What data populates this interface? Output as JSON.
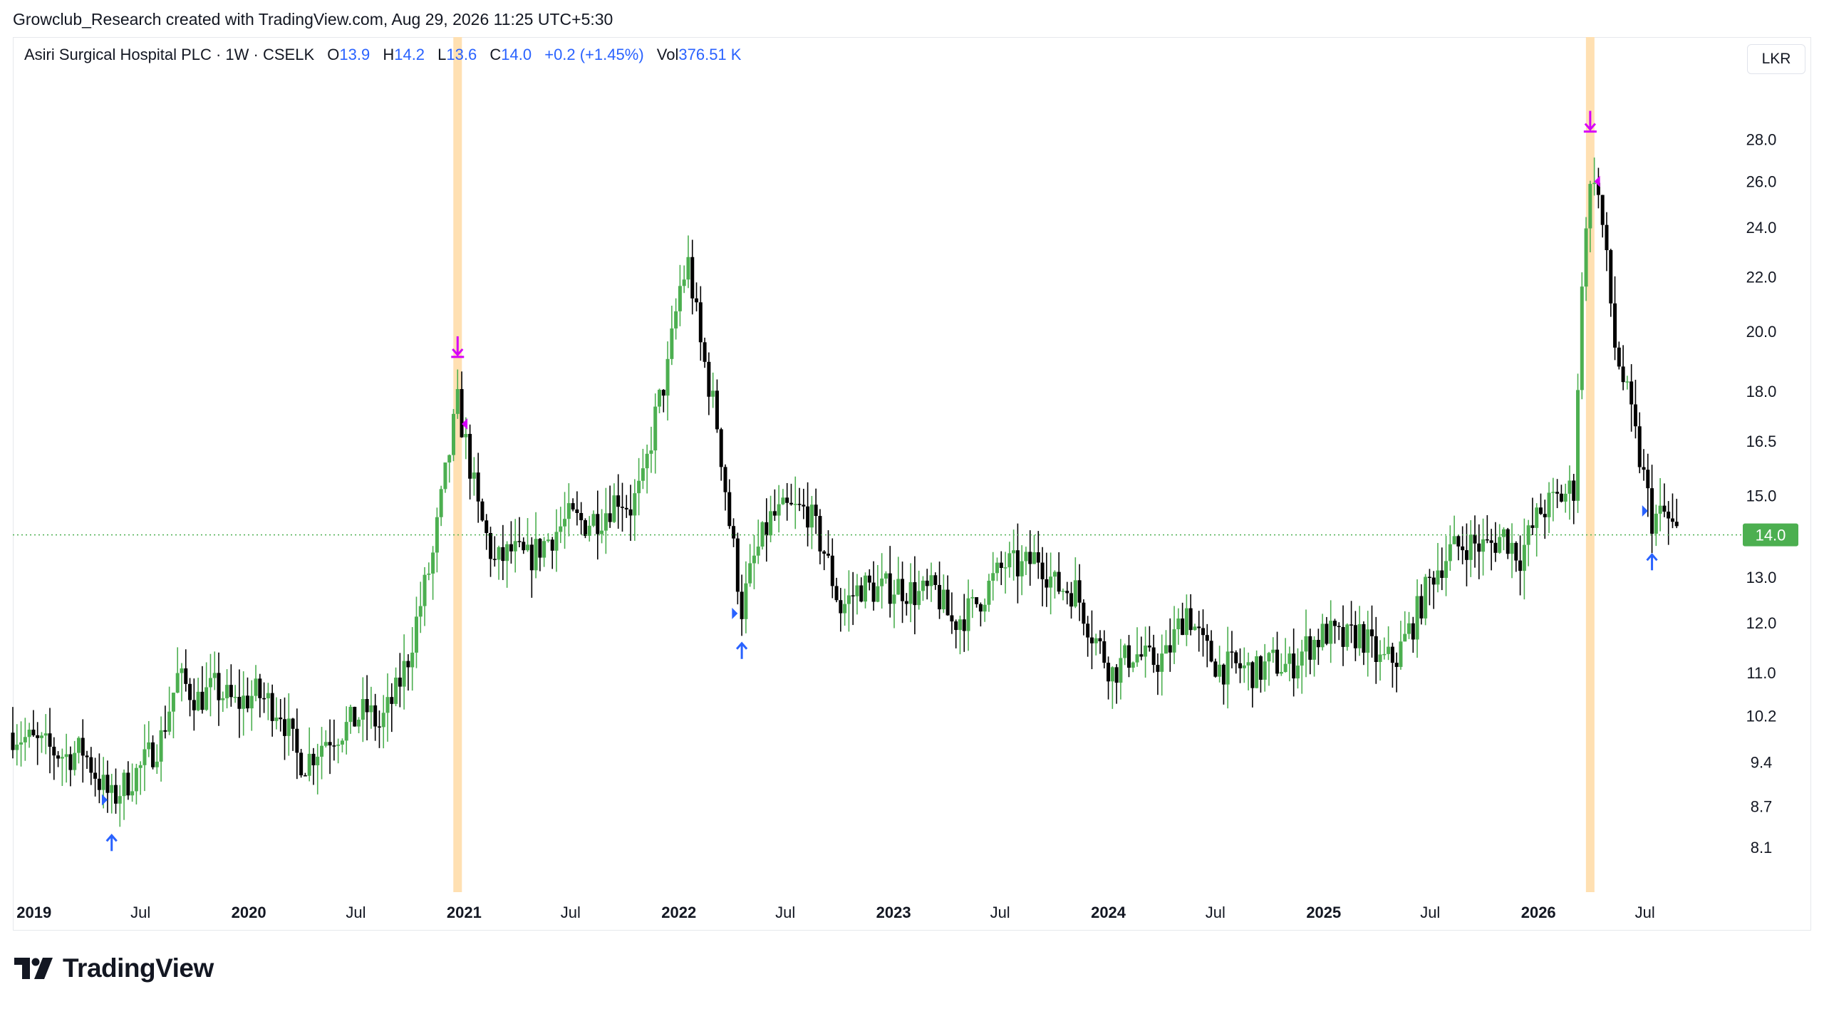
{
  "caption": "Growclub_Research created with TradingView.com, Aug 29, 2026 11:25 UTC+5:30",
  "legend": {
    "symbol": "Asiri Surgical Hospital PLC · 1W · CSELK",
    "o_label": "O",
    "o": "13.9",
    "h_label": "H",
    "h": "14.2",
    "l_label": "L",
    "l": "13.6",
    "c_label": "C",
    "c": "14.0",
    "change": "+0.2 (+1.45%)",
    "vol_label": "Vol",
    "vol": "376.51 K"
  },
  "currency": "LKR",
  "last_price_label": "14.0",
  "brand": "TradingView",
  "colors": {
    "up": "#4caf50",
    "down": "#000000",
    "signal_buy": "#2962ff",
    "signal_sell": "#d500f9",
    "highlight": "#ffe0b2",
    "price_line": "#4caf50"
  },
  "chart_data": {
    "type": "candlestick",
    "title": "Asiri Surgical Hospital PLC · 1W · CSELK",
    "y_scale": "log",
    "ylim": [
      7.6,
      30.0
    ],
    "y_ticks": [
      "28.0",
      "26.0",
      "24.0",
      "22.0",
      "20.0",
      "18.0",
      "16.5",
      "15.0",
      "14.0",
      "13.0",
      "12.0",
      "11.0",
      "10.2",
      "9.4",
      "8.7",
      "8.1"
    ],
    "x_ticks": [
      {
        "label": "2019",
        "date": "2019-01-01",
        "bold": true
      },
      {
        "label": "Jul",
        "date": "2019-07-01",
        "bold": false
      },
      {
        "label": "2020",
        "date": "2020-01-01",
        "bold": true
      },
      {
        "label": "Jul",
        "date": "2020-07-01",
        "bold": false
      },
      {
        "label": "2021",
        "date": "2021-01-01",
        "bold": true
      },
      {
        "label": "Jul",
        "date": "2021-07-01",
        "bold": false
      },
      {
        "label": "2022",
        "date": "2022-01-01",
        "bold": true
      },
      {
        "label": "Jul",
        "date": "2022-07-01",
        "bold": false
      },
      {
        "label": "2023",
        "date": "2023-01-01",
        "bold": true
      },
      {
        "label": "Jul",
        "date": "2023-07-01",
        "bold": false
      },
      {
        "label": "2024",
        "date": "2024-01-01",
        "bold": true
      },
      {
        "label": "Jul",
        "date": "2024-07-01",
        "bold": false
      },
      {
        "label": "2025",
        "date": "2025-01-01",
        "bold": true
      },
      {
        "label": "Jul",
        "date": "2025-07-01",
        "bold": false
      },
      {
        "label": "2026",
        "date": "2026-01-01",
        "bold": true
      },
      {
        "label": "Jul",
        "date": "2026-07-01",
        "bold": false
      }
    ],
    "date_range": [
      "2018-11-26",
      "2026-12-01"
    ],
    "series_anchors": [
      [
        "2018-11-26",
        9.9
      ],
      [
        "2019-01-07",
        9.7
      ],
      [
        "2019-02-25",
        9.5
      ],
      [
        "2019-03-25",
        9.6
      ],
      [
        "2019-04-22",
        9.1
      ],
      [
        "2019-05-13",
        8.8
      ],
      [
        "2019-06-10",
        9.1
      ],
      [
        "2019-07-01",
        9.3
      ],
      [
        "2019-08-05",
        9.8
      ],
      [
        "2019-09-02",
        10.9
      ],
      [
        "2019-10-07",
        10.5
      ],
      [
        "2019-11-04",
        10.7
      ],
      [
        "2019-12-09",
        10.4
      ],
      [
        "2020-01-13",
        10.6
      ],
      [
        "2020-02-24",
        10.3
      ],
      [
        "2020-03-23",
        9.5
      ],
      [
        "2020-04-06",
        9.4
      ],
      [
        "2020-05-11",
        9.8
      ],
      [
        "2020-06-15",
        10.0
      ],
      [
        "2020-07-20",
        10.3
      ],
      [
        "2020-08-10",
        10.0
      ],
      [
        "2020-09-07",
        10.6
      ],
      [
        "2020-09-28",
        11.3
      ],
      [
        "2020-10-19",
        12.4
      ],
      [
        "2020-11-09",
        13.5
      ],
      [
        "2020-11-30",
        15.5
      ],
      [
        "2020-12-21",
        17.6
      ],
      [
        "2021-01-04",
        16.4
      ],
      [
        "2021-01-25",
        14.6
      ],
      [
        "2021-02-22",
        13.3
      ],
      [
        "2021-03-22",
        13.6
      ],
      [
        "2021-04-19",
        13.4
      ],
      [
        "2021-05-24",
        13.9
      ],
      [
        "2021-06-28",
        14.4
      ],
      [
        "2021-07-26",
        14.3
      ],
      [
        "2021-08-23",
        14.5
      ],
      [
        "2021-09-20",
        15.0
      ],
      [
        "2021-10-11",
        14.7
      ],
      [
        "2021-11-01",
        15.3
      ],
      [
        "2021-11-22",
        17.2
      ],
      [
        "2021-12-13",
        18.7
      ],
      [
        "2022-01-03",
        21.6
      ],
      [
        "2022-01-17",
        22.5
      ],
      [
        "2022-02-07",
        19.5
      ],
      [
        "2022-03-07",
        17.0
      ],
      [
        "2022-03-28",
        14.3
      ],
      [
        "2022-04-18",
        12.3
      ],
      [
        "2022-05-09",
        13.4
      ],
      [
        "2022-06-06",
        14.4
      ],
      [
        "2022-07-04",
        14.6
      ],
      [
        "2022-08-08",
        14.6
      ],
      [
        "2022-09-05",
        13.6
      ],
      [
        "2022-10-03",
        12.3
      ],
      [
        "2022-11-07",
        12.8
      ],
      [
        "2022-12-05",
        12.7
      ],
      [
        "2023-01-09",
        12.8
      ],
      [
        "2023-02-13",
        12.6
      ],
      [
        "2023-03-13",
        12.7
      ],
      [
        "2023-04-10",
        12.0
      ],
      [
        "2023-05-15",
        12.3
      ],
      [
        "2023-06-12",
        12.8
      ],
      [
        "2023-07-10",
        13.3
      ],
      [
        "2023-08-07",
        13.2
      ],
      [
        "2023-09-04",
        13.5
      ],
      [
        "2023-10-02",
        12.8
      ],
      [
        "2023-11-06",
        12.7
      ],
      [
        "2023-12-04",
        11.8
      ],
      [
        "2024-01-08",
        11.0
      ],
      [
        "2024-02-12",
        11.4
      ],
      [
        "2024-03-11",
        11.2
      ],
      [
        "2024-04-08",
        11.3
      ],
      [
        "2024-05-13",
        12.3
      ],
      [
        "2024-06-10",
        11.5
      ],
      [
        "2024-07-08",
        11.1
      ],
      [
        "2024-08-12",
        11.1
      ],
      [
        "2024-09-09",
        11.0
      ],
      [
        "2024-10-07",
        11.2
      ],
      [
        "2024-11-04",
        11.1
      ],
      [
        "2024-12-02",
        11.5
      ],
      [
        "2025-01-06",
        11.8
      ],
      [
        "2025-02-03",
        11.6
      ],
      [
        "2025-03-03",
        11.8
      ],
      [
        "2025-04-07",
        11.2
      ],
      [
        "2025-05-05",
        11.3
      ],
      [
        "2025-06-02",
        12.0
      ],
      [
        "2025-07-07",
        13.1
      ],
      [
        "2025-08-04",
        13.6
      ],
      [
        "2025-09-01",
        13.8
      ],
      [
        "2025-10-06",
        13.7
      ],
      [
        "2025-11-03",
        14.0
      ],
      [
        "2025-12-01",
        13.5
      ],
      [
        "2026-01-05",
        14.6
      ],
      [
        "2026-02-02",
        14.9
      ],
      [
        "2026-03-02",
        15.2
      ],
      [
        "2026-03-23",
        24.5
      ],
      [
        "2026-04-06",
        26.5
      ],
      [
        "2026-04-20",
        24.0
      ],
      [
        "2026-05-11",
        19.5
      ],
      [
        "2026-06-01",
        17.8
      ],
      [
        "2026-06-22",
        16.0
      ],
      [
        "2026-07-13",
        14.4
      ],
      [
        "2026-08-03",
        14.5
      ],
      [
        "2026-08-24",
        14.0
      ]
    ],
    "last_close": 14.0,
    "highlighted_weeks": [
      "2020-12-21",
      "2026-03-30"
    ],
    "buy_signals": [
      {
        "date": "2019-05-13",
        "price": 8.5
      },
      {
        "date": "2022-04-18",
        "price": 11.9
      },
      {
        "date": "2026-07-13",
        "price": 13.9
      }
    ],
    "sell_signals": [
      {
        "date": "2020-12-21",
        "price": 19.0
      },
      {
        "date": "2026-03-30",
        "price": 28.2
      }
    ],
    "small_triangle_markers": [
      {
        "date": "2019-05-06",
        "price": 8.8,
        "dir": "right",
        "color": "blue"
      },
      {
        "date": "2020-12-28",
        "price": 17.0,
        "dir": "left",
        "color": "magenta"
      },
      {
        "date": "2022-04-11",
        "price": 12.2,
        "dir": "right",
        "color": "blue"
      },
      {
        "date": "2026-04-06",
        "price": 26.0,
        "dir": "left",
        "color": "magenta"
      },
      {
        "date": "2026-07-06",
        "price": 14.6,
        "dir": "right",
        "color": "blue"
      }
    ]
  }
}
